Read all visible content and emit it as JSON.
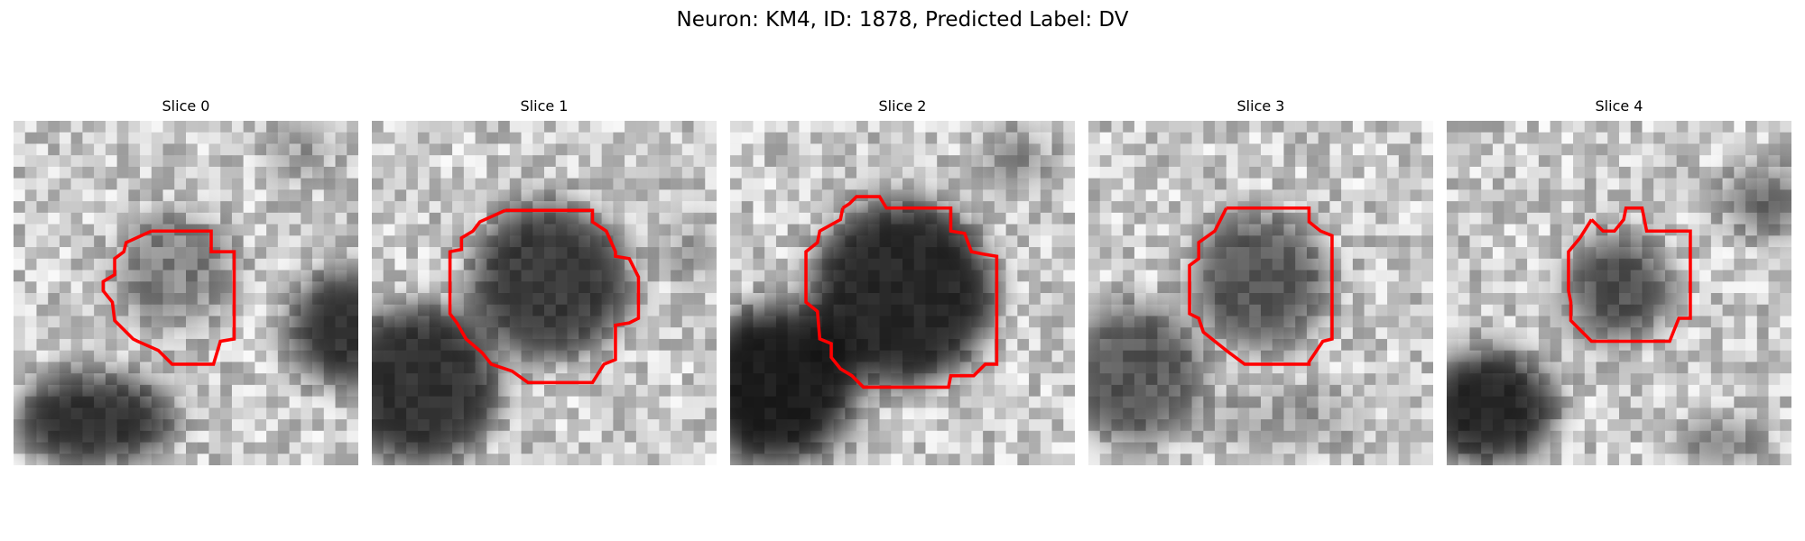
{
  "figure": {
    "title": "Neuron: KM4, ID: 1878, Predicted Label: DV",
    "contour_color": "#ff0000"
  },
  "slices": [
    {
      "label": "Slice 0"
    },
    {
      "label": "Slice 1"
    },
    {
      "label": "Slice 2"
    },
    {
      "label": "Slice 3"
    },
    {
      "label": "Slice 4"
    }
  ]
}
